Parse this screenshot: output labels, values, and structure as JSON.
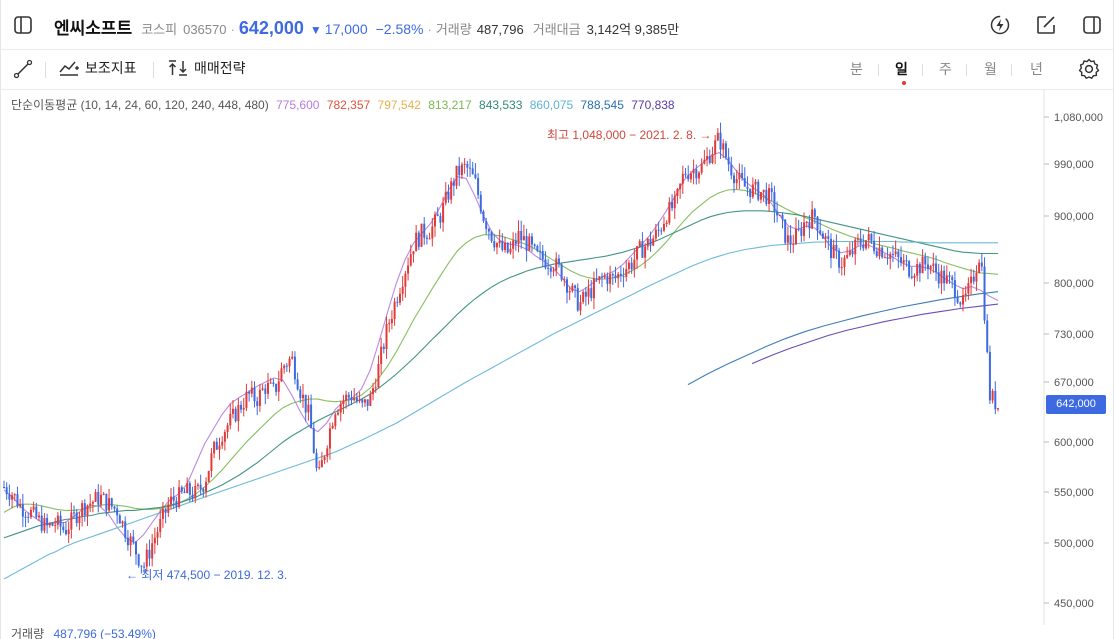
{
  "header": {
    "stock_name": "엔씨소프트",
    "market": "코스피",
    "code": "036570",
    "separator": "·",
    "price": "642,000",
    "change_arrow": "▼",
    "change": "17,000",
    "change_pct": "−2.58%",
    "volume_label": "거래량",
    "volume_value": "487,796",
    "amount_label": "거래대금",
    "amount_value": "3,142억 9,385만"
  },
  "toolbar": {
    "indicators_label": "보조지표",
    "strategy_label": "매매전략",
    "periods": [
      "분",
      "일",
      "주",
      "월",
      "년"
    ],
    "active_period": "일"
  },
  "ma_legend": {
    "title": "단순이동평균 (10, 14, 24, 60, 120, 240, 448, 480)",
    "values": [
      {
        "value": "775,600",
        "color": "#b47be0"
      },
      {
        "value": "782,357",
        "color": "#e0523a"
      },
      {
        "value": "797,542",
        "color": "#e8b04a"
      },
      {
        "value": "813,217",
        "color": "#7ab850"
      },
      {
        "value": "843,533",
        "color": "#2f8a78"
      },
      {
        "value": "860,075",
        "color": "#5cb3d6"
      },
      {
        "value": "788,545",
        "color": "#2a6fb0"
      },
      {
        "value": "770,838",
        "color": "#5a3aa8"
      }
    ]
  },
  "annotations": {
    "high": "최고 1,048,000 − 2021. 2. 8. →",
    "low": "← 최저 474,500 − 2019. 12. 3."
  },
  "current_price_tag": "642,000",
  "volume_footer": {
    "label": "거래량",
    "value": "487,796 (−53.49%)"
  },
  "colors": {
    "up": "#e03a3a",
    "down": "#3d6ae0",
    "accent": "#3d6ae0"
  },
  "chart_data": {
    "type": "line",
    "description_series": "candlestick price path (daily closes, approx.)",
    "y_ticks": [
      "1,080,000",
      "990,000",
      "900,000",
      "800,000",
      "730,000",
      "670,000",
      "600,000",
      "550,000",
      "500,000",
      "450,000"
    ],
    "y_tick_values": [
      1080000,
      990000,
      900000,
      800000,
      730000,
      670000,
      600000,
      550000,
      500000,
      450000
    ],
    "ylim": [
      435000,
      1100000
    ],
    "price_path": [
      555000,
      548000,
      535000,
      530000,
      522000,
      515000,
      520000,
      512000,
      525000,
      535000,
      540000,
      545000,
      538000,
      532000,
      510000,
      495000,
      480000,
      500000,
      520000,
      540000,
      545000,
      550000,
      548000,
      560000,
      590000,
      610000,
      625000,
      640000,
      655000,
      650000,
      665000,
      658000,
      690000,
      700000,
      660000,
      630000,
      560000,
      600000,
      640000,
      650000,
      655000,
      640000,
      650000,
      690000,
      740000,
      780000,
      820000,
      860000,
      875000,
      880000,
      900000,
      940000,
      975000,
      985000,
      960000,
      900000,
      870000,
      850000,
      845000,
      870000,
      860000,
      840000,
      835000,
      830000,
      815000,
      790000,
      770000,
      785000,
      800000,
      810000,
      805000,
      820000,
      830000,
      850000,
      860000,
      875000,
      905000,
      920000,
      975000,
      980000,
      985000,
      1010000,
      1040000,
      995000,
      965000,
      950000,
      945000,
      940000,
      930000,
      890000,
      860000,
      870000,
      895000,
      900000,
      870000,
      845000,
      830000,
      840000,
      860000,
      865000,
      855000,
      848000,
      840000,
      830000,
      820000,
      825000,
      830000,
      815000,
      805000,
      795000,
      770000,
      800000,
      850000,
      655000,
      642000
    ],
    "ma_series": [
      {
        "name": "10",
        "values": [
          552000,
          545000,
          535000,
          528000,
          522000,
          518000,
          520000,
          520000,
          526000,
          533000,
          537000,
          536000,
          528000,
          515000,
          505000,
          500000,
          508000,
          520000,
          532000,
          542000,
          548000,
          558000,
          578000,
          598000,
          615000,
          632000,
          645000,
          652000,
          658000,
          665000,
          670000,
          675000,
          672000,
          655000,
          635000,
          618000,
          612000,
          622000,
          638000,
          648000,
          652000,
          662000,
          685000,
          720000,
          760000,
          800000,
          835000,
          860000,
          875000,
          890000,
          915000,
          945000,
          968000,
          965000,
          935000,
          900000,
          875000,
          862000,
          858000,
          856000,
          850000,
          840000,
          832000,
          822000,
          808000,
          792000,
          788000,
          795000,
          805000,
          812000,
          818000,
          828000,
          842000,
          856000,
          870000,
          888000,
          910000,
          935000,
          962000,
          978000,
          990000,
          1005000,
          1012000,
          998000,
          978000,
          960000,
          948000,
          938000,
          922000,
          900000,
          885000,
          880000,
          885000,
          882000,
          868000,
          852000,
          845000,
          848000,
          855000,
          857000,
          852000,
          845000,
          838000,
          830000,
          825000,
          825000,
          822000,
          815000,
          806000,
          798000,
          792000,
          795000,
          790000,
          782000,
          776000
        ]
      },
      {
        "name": "60",
        "values": [
          530000,
          535000,
          538000,
          538000,
          537000,
          535000,
          533000,
          532000,
          532000,
          533000,
          535000,
          537000,
          538000,
          537000,
          536000,
          534000,
          533000,
          533000,
          534000,
          536000,
          539000,
          543000,
          548000,
          555000,
          563000,
          572000,
          582000,
          592000,
          602000,
          612000,
          622000,
          632000,
          640000,
          645000,
          648000,
          650000,
          650000,
          648000,
          647000,
          648000,
          650000,
          655000,
          663000,
          675000,
          690000,
          708000,
          728000,
          750000,
          770000,
          790000,
          810000,
          830000,
          848000,
          860000,
          868000,
          872000,
          872000,
          870000,
          866000,
          862000,
          857000,
          850000,
          842000,
          834000,
          826000,
          818000,
          812000,
          808000,
          806000,
          806000,
          808000,
          812000,
          818000,
          826000,
          836000,
          848000,
          862000,
          878000,
          893000,
          908000,
          920000,
          932000,
          940000,
          945000,
          946000,
          944000,
          940000,
          934000,
          926000,
          918000,
          910000,
          903000,
          897000,
          892000,
          886000,
          880000,
          875000,
          870000,
          866000,
          862000,
          858000,
          855000,
          852000,
          848000,
          845000,
          842000,
          839000,
          835000,
          830000,
          826000,
          822000,
          818000,
          815000,
          814000,
          813000
        ]
      },
      {
        "name": "120",
        "values": [
          505000,
          508000,
          511000,
          514000,
          517000,
          519000,
          521000,
          523000,
          524000,
          526000,
          527000,
          529000,
          530000,
          531000,
          532000,
          532000,
          533000,
          534000,
          535000,
          537000,
          539000,
          542000,
          545000,
          549000,
          553000,
          557000,
          562000,
          567000,
          573000,
          579000,
          586000,
          593000,
          600000,
          607000,
          613000,
          619000,
          625000,
          630000,
          635000,
          640000,
          645000,
          650000,
          656000,
          663000,
          671000,
          680000,
          690000,
          700000,
          711000,
          722000,
          733000,
          745000,
          757000,
          768000,
          778000,
          787000,
          795000,
          802000,
          808000,
          813000,
          818000,
          822000,
          825000,
          828000,
          830000,
          832000,
          834000,
          836000,
          838000,
          840000,
          843000,
          846000,
          850000,
          854000,
          859000,
          864000,
          870000,
          876000,
          882000,
          888000,
          894000,
          899000,
          903000,
          906000,
          908000,
          909000,
          909000,
          909000,
          908000,
          906000,
          904000,
          902000,
          899000,
          896000,
          893000,
          890000,
          887000,
          884000,
          881000,
          878000,
          875000,
          872000,
          869000,
          866000,
          863000,
          860000,
          857000,
          854000,
          851000,
          848000,
          846000,
          845000,
          844000,
          844000,
          844000
        ]
      },
      {
        "name": "240",
        "values": [
          470000,
          474000,
          478000,
          482000,
          486000,
          490000,
          493000,
          497000,
          500000,
          503000,
          506000,
          509000,
          512000,
          515000,
          518000,
          521000,
          524000,
          527000,
          530000,
          533000,
          536000,
          539000,
          542000,
          545000,
          548000,
          551000,
          554000,
          557000,
          560000,
          563000,
          566000,
          569000,
          572000,
          575000,
          578000,
          581000,
          584000,
          587000,
          590000,
          594000,
          598000,
          602000,
          607000,
          612000,
          617000,
          622000,
          628000,
          634000,
          640000,
          646000,
          652000,
          658000,
          664000,
          670000,
          676000,
          682000,
          688000,
          694000,
          700000,
          706000,
          712000,
          718000,
          724000,
          730000,
          736000,
          742000,
          748000,
          754000,
          760000,
          766000,
          772000,
          778000,
          784000,
          790000,
          796000,
          802000,
          808000,
          814000,
          820000,
          826000,
          831000,
          836000,
          840000,
          844000,
          847000,
          850000,
          852000,
          854000,
          856000,
          857000,
          858000,
          859000,
          860000,
          861000,
          861000,
          862000,
          862000,
          862000,
          862000,
          862000,
          862000,
          862000,
          862000,
          861000,
          861000,
          861000,
          860000,
          860000,
          860000,
          860000,
          860000,
          860000,
          860000,
          860000,
          860000
        ]
      },
      {
        "name": "448",
        "values_tail": [
          667000,
          680000,
          692000,
          703000,
          714000,
          724000,
          733000,
          741000,
          748000,
          755000,
          761000,
          767000,
          772000,
          777000,
          781000,
          785000,
          788000
        ]
      },
      {
        "name": "480",
        "values_tail": [
          693000,
          703000,
          712000,
          720000,
          728000,
          735000,
          741000,
          747000,
          752000,
          757000,
          761000,
          765000,
          768000,
          771000
        ]
      }
    ]
  }
}
